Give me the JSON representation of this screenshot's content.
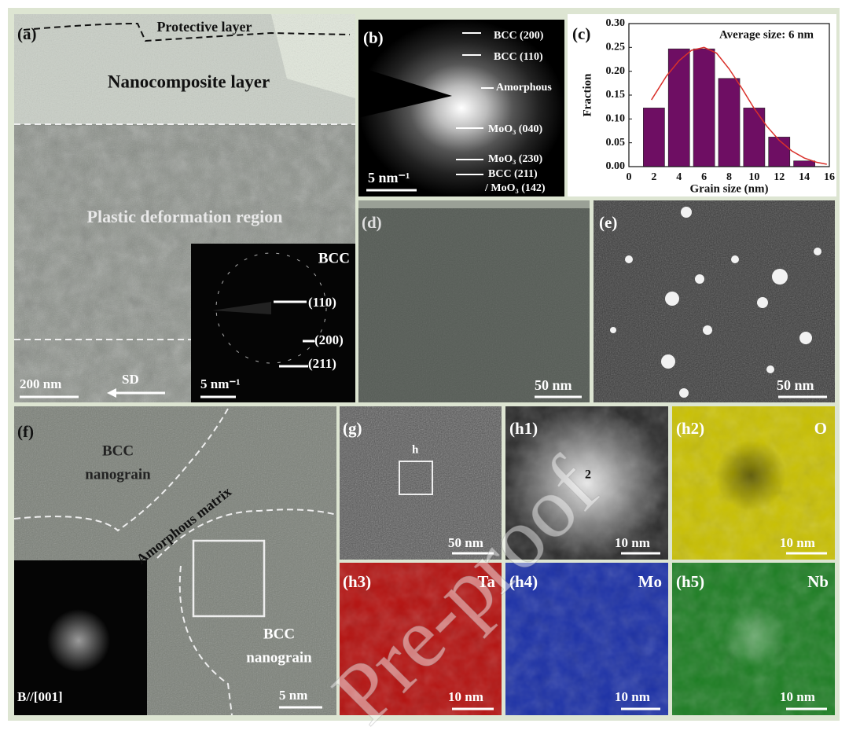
{
  "figure": {
    "a": {
      "label": "(a)",
      "protective": "Protective layer",
      "nanocomposite": "Nanocomposite layer",
      "plastic": "Plastic deformation region",
      "inset_title": "BCC",
      "inset_110": "(110)",
      "inset_200": "(200)",
      "inset_211": "(211)",
      "inset_scale": "5 nm⁻¹",
      "scale": "200 nm",
      "direction": "SD"
    },
    "b": {
      "label": "(b)",
      "bcc200": "BCC (200)",
      "bcc110": "BCC (110)",
      "amorphous": "Amorphous",
      "moo3_040": "MoO₃ (040)",
      "moo3_230": "MoO₃ (230)",
      "bcc211": "BCC (211)",
      "moo3_142": "/ MoO₃ (142)",
      "scale": "5 nm⁻¹"
    },
    "c": {
      "label": "(c)"
    },
    "d": {
      "label": "(d)",
      "scale": "50 nm"
    },
    "e": {
      "label": "(e)",
      "scale": "50 nm"
    },
    "f": {
      "label": "(f)",
      "grain1_a": "BCC",
      "grain1_b": "nanograin",
      "matrix": "Amorphous matrix",
      "grain2_a": "BCC",
      "grain2_b": "nanograin",
      "zone": "B//[001]",
      "scale": "5 nm"
    },
    "g": {
      "label": "(g)",
      "box": "h",
      "scale": "50 nm"
    },
    "h1": {
      "label": "(h1)",
      "marker": "2",
      "scale": "10 nm"
    },
    "h2": {
      "label": "(h2)",
      "element": "O",
      "scale": "10 nm"
    },
    "h3": {
      "label": "(h3)",
      "element": "Ta",
      "scale": "10 nm"
    },
    "h4": {
      "label": "(h4)",
      "element": "Mo",
      "scale": "10 nm"
    },
    "h5": {
      "label": "(h5)",
      "element": "Nb",
      "scale": "10 nm"
    }
  },
  "chart_data": {
    "type": "bar",
    "annotation": "Average size: 6 nm",
    "x_label": "Grain size (nm)",
    "y_label": "Fraction",
    "x": [
      2,
      4,
      6,
      8,
      10,
      12,
      14
    ],
    "values": [
      0.123,
      0.247,
      0.247,
      0.185,
      0.123,
      0.062,
      0.012
    ],
    "color": "#6e0e63",
    "fit": {
      "x": [
        1.8,
        3,
        4,
        5,
        6,
        7,
        8,
        9,
        10,
        11,
        12,
        13,
        14,
        15,
        15.8
      ],
      "values": [
        0.14,
        0.19,
        0.222,
        0.244,
        0.25,
        0.238,
        0.205,
        0.165,
        0.122,
        0.085,
        0.055,
        0.033,
        0.018,
        0.009,
        0.005
      ],
      "color": "#d9302a"
    },
    "xlim": [
      0,
      16
    ],
    "xticks": [
      0,
      2,
      4,
      6,
      8,
      10,
      12,
      14,
      16
    ],
    "ylim": [
      0,
      0.3
    ],
    "yticks": [
      {
        "value": 0,
        "label": "0.00"
      },
      {
        "value": 0.05,
        "label": "0.05"
      },
      {
        "value": 0.1,
        "label": "0.10"
      },
      {
        "value": 0.15,
        "label": "0.15"
      },
      {
        "value": 0.2,
        "label": "0.20"
      },
      {
        "value": 0.25,
        "label": "0.25"
      },
      {
        "value": 0.3,
        "label": "0.30"
      }
    ]
  },
  "watermark": "Pre-proof"
}
